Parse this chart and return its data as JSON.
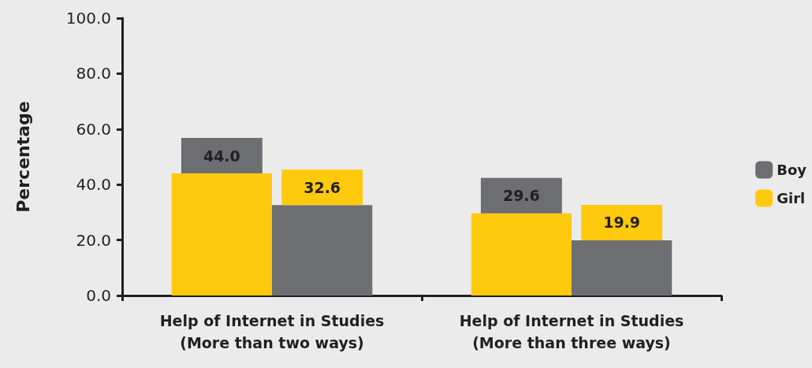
{
  "chart_data": {
    "type": "bar",
    "ylabel": "Percentage",
    "categories": [
      "Help of Internet in Studies\n(More than two ways)",
      "Help of Internet in Studies\n(More than three ways)"
    ],
    "series": [
      {
        "name": "Girl",
        "color": "#ffc90e",
        "values": [
          44.0,
          29.6
        ],
        "value_labels": [
          "44.0",
          "29.6"
        ]
      },
      {
        "name": "Boy",
        "color": "#6d6e71",
        "values": [
          32.6,
          19.9
        ],
        "value_labels": [
          "32.6",
          "19.9"
        ]
      }
    ],
    "ylim": [
      0,
      100
    ],
    "yticks": [
      {
        "value": 0,
        "label": "0.0"
      },
      {
        "value": 20,
        "label": "20.0"
      },
      {
        "value": 40,
        "label": "40.0"
      },
      {
        "value": 60,
        "label": "60.0"
      },
      {
        "value": 80,
        "label": "80.0"
      },
      {
        "value": 100,
        "label": "100.0"
      }
    ],
    "grid": false,
    "legend": "right"
  }
}
